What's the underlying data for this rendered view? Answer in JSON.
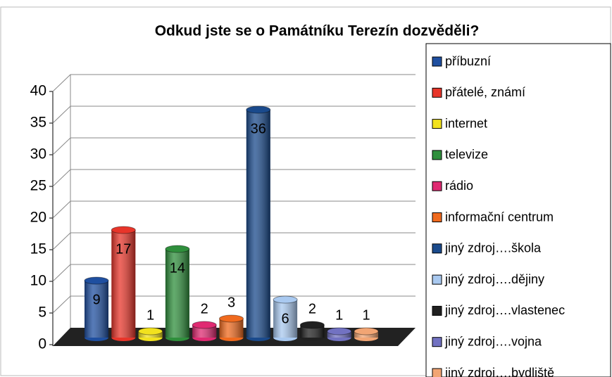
{
  "chart_data": {
    "type": "bar",
    "title": "Odkud jste se o Památníku Terezín dozvěděli?",
    "ylim": [
      0,
      40
    ],
    "yticks": [
      0,
      5,
      10,
      15,
      20,
      25,
      30,
      35,
      40
    ],
    "grid": true,
    "legend": "right",
    "series": [
      {
        "name": "příbuzní",
        "color": "#1f4fa0",
        "values": [
          9
        ]
      },
      {
        "name": "přátelé, známí",
        "color": "#e8352a",
        "values": [
          17
        ]
      },
      {
        "name": "internet",
        "color": "#f2e21e",
        "values": [
          1
        ]
      },
      {
        "name": "televize",
        "color": "#2f8f3c",
        "values": [
          14
        ]
      },
      {
        "name": "rádio",
        "color": "#e02a72",
        "values": [
          2
        ]
      },
      {
        "name": "informační centrum",
        "color": "#f06a1e",
        "values": [
          3
        ]
      },
      {
        "name": "jiný zdroj….škola",
        "color": "#1a4a8c",
        "values": [
          36
        ]
      },
      {
        "name": "jiný zdroj….dějiny",
        "color": "#a9c9f0",
        "values": [
          6
        ]
      },
      {
        "name": "jiný zdroj….vlastenec",
        "color": "#202020",
        "values": [
          2
        ]
      },
      {
        "name": "jiný zdroj….vojna",
        "color": "#7272c2",
        "values": [
          1
        ]
      },
      {
        "name": "jiný zdroj….bydliště",
        "color": "#f2a574",
        "values": [
          1
        ]
      }
    ]
  }
}
